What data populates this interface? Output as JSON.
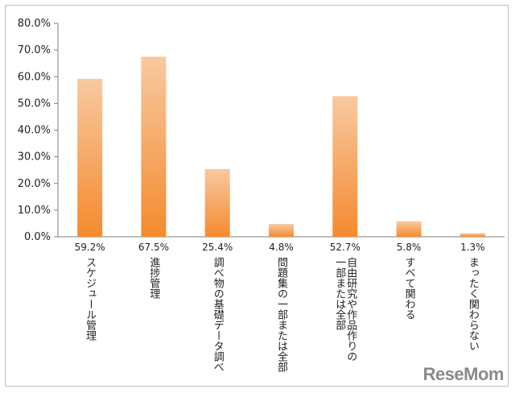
{
  "chart_data": {
    "type": "bar",
    "categories": [
      "スケジュール管理",
      "進捗管理",
      "調べ物の基礎データ調べ",
      "問題集の一部または全部",
      "自由研究や作品作りの一部または全部",
      "すべて関わる",
      "まったく関わらない"
    ],
    "category_lines": [
      [
        "スケジュール管理"
      ],
      [
        "進捗管理"
      ],
      [
        "調べ物の基礎データ調べ"
      ],
      [
        "問題集の一部または全部"
      ],
      [
        "自由研究や作品作りの",
        "一部または全部"
      ],
      [
        "すべて関わる"
      ],
      [
        "まったく関わらない"
      ]
    ],
    "values": [
      59.2,
      67.5,
      25.4,
      4.8,
      52.7,
      5.8,
      1.3
    ],
    "data_labels": [
      "59.2%",
      "67.5%",
      "25.4%",
      "4.8%",
      "52.7%",
      "5.8%",
      "1.3%"
    ],
    "yticks": [
      0,
      10,
      20,
      30,
      40,
      50,
      60,
      70,
      80
    ],
    "ytick_labels": [
      "0.0%",
      "10.0%",
      "20.0%",
      "30.0%",
      "40.0%",
      "50.0%",
      "60.0%",
      "70.0%",
      "80.0%"
    ],
    "ylim": [
      0,
      80
    ],
    "grid": false,
    "legend": "none",
    "colors": {
      "bar_top": "#f8c9a0",
      "bar_bottom": "#f58a2e",
      "axis": "#7f7f7f"
    }
  },
  "watermark": "ReseMom"
}
